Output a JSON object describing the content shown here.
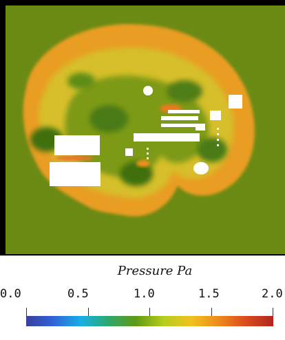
{
  "legend": {
    "title": "Pressure Pa",
    "ticks": [
      "0.0",
      "0.5",
      "1.0",
      "1.5",
      "2.0"
    ]
  },
  "colors": {
    "background_field": "#6b8a14",
    "wave_orange": "#e5a524",
    "wave_yellow": "#d9c22e",
    "dark_green": "#3d6f12",
    "obstacles": "#ffffff",
    "frame": "#000000"
  },
  "colormap": [
    "#3b3f9c",
    "#2f64d8",
    "#17b0e6",
    "#2ea86a",
    "#5f9a14",
    "#b7cc1e",
    "#f0c21f",
    "#ef8a1d",
    "#d94c1c",
    "#b12520"
  ],
  "legend_range": [
    0.0,
    2.0
  ]
}
